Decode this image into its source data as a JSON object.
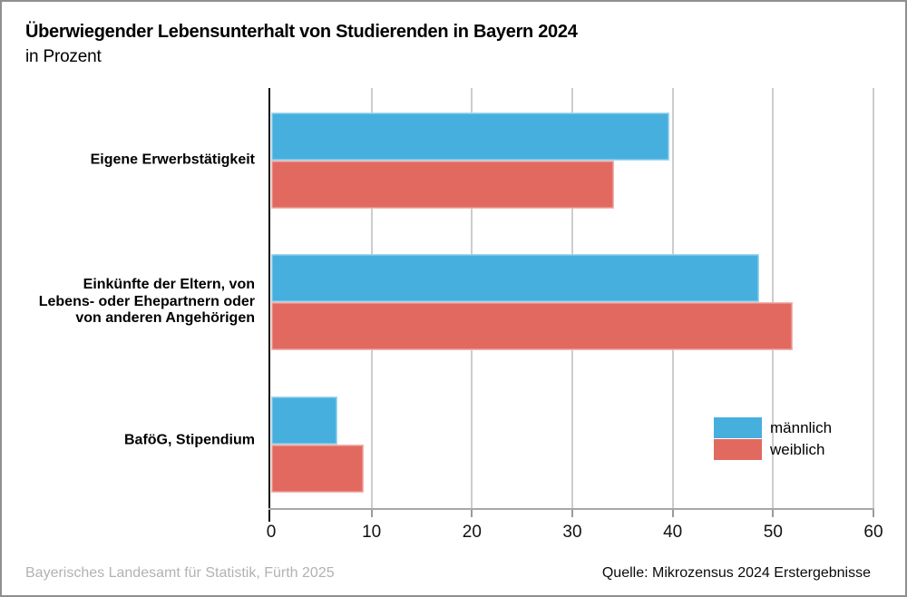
{
  "header": {
    "title": "Überwiegender Lebensunterhalt von Studierenden in Bayern 2024",
    "subtitle": "in Prozent"
  },
  "footer": {
    "left": "Bayerisches Landesamt für Statistik, Fürth 2025",
    "right": "Quelle: Mikrozensus 2024 Erstergebnisse"
  },
  "colors": {
    "maennlich": "#46afde",
    "weiblich": "#e2695f",
    "gridline": "#cdcdcd",
    "axis": "#a8a8a8",
    "footer_gray": "#b2b2b2"
  },
  "chart_data": {
    "type": "bar",
    "orientation": "horizontal",
    "title": "Überwiegender Lebensunterhalt von Studierenden in Bayern 2024",
    "subtitle": "in Prozent",
    "categories": [
      "Eigene Erwerbstätigkeit",
      "Einkünfte der Eltern, von Lebens- oder Ehepartnern oder von anderen Angehörigen",
      "BaföG, Stipendium"
    ],
    "category_label_lines": [
      [
        "Eigene Erwerbstätigkeit"
      ],
      [
        "Einkünfte der Eltern, von",
        "Lebens- oder Ehepartnern oder",
        "von anderen Angehörigen"
      ],
      [
        "BaföG, Stipendium"
      ]
    ],
    "series": [
      {
        "name": "männlich",
        "color": "#46afde",
        "values": [
          39.7,
          48.6,
          6.6
        ]
      },
      {
        "name": "weiblich",
        "color": "#e2695f",
        "values": [
          34.2,
          52.0,
          9.2
        ]
      }
    ],
    "xlim": [
      0,
      60
    ],
    "x_ticks": [
      0,
      10,
      20,
      30,
      40,
      50,
      60
    ],
    "grid": true,
    "legend_position": "inside-right-bottom",
    "unit": "Prozent"
  }
}
